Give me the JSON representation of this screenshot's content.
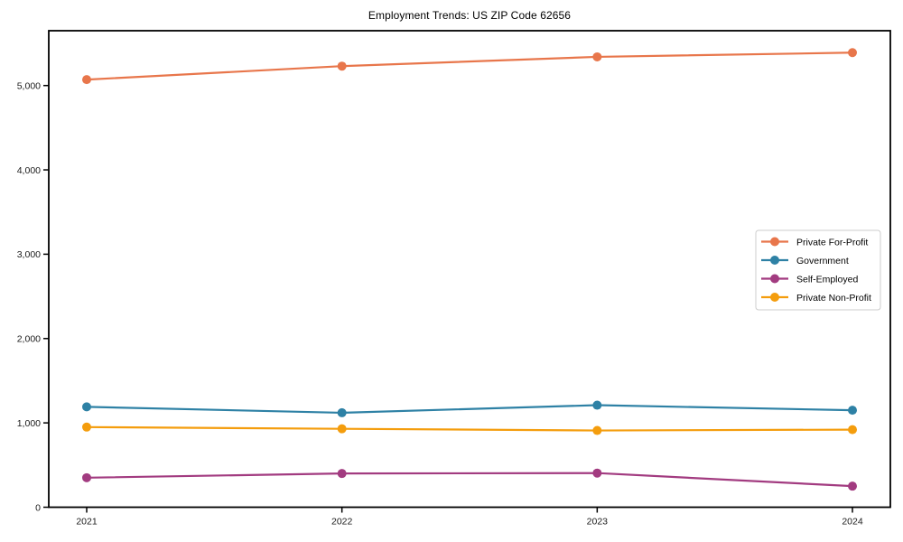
{
  "figure": {
    "background": "#ffffff",
    "axis_color": "#000000",
    "tick_label_color": "#1a1a1a",
    "legend_border_color": "#cccccc",
    "legend_background": "#ffffff"
  },
  "chart_data": {
    "type": "line",
    "title": "Employment Trends: US ZIP Code 62656",
    "categories": [
      "2021",
      "2022",
      "2023",
      "2024"
    ],
    "series": [
      {
        "name": "Private For-Profit",
        "color": "#e8764b",
        "values": [
          5070,
          5230,
          5340,
          5390
        ]
      },
      {
        "name": "Government",
        "color": "#2e81a5",
        "values": [
          1190,
          1120,
          1210,
          1150
        ]
      },
      {
        "name": "Self-Employed",
        "color": "#a23b80",
        "values": [
          350,
          400,
          405,
          250
        ]
      },
      {
        "name": "Private Non-Profit",
        "color": "#f49d0d",
        "values": [
          950,
          930,
          910,
          920
        ]
      }
    ],
    "xlabel": "",
    "ylabel": "",
    "ylim": [
      0,
      5650
    ],
    "yticks": [
      {
        "value": 0,
        "label": "0"
      },
      {
        "value": 1000,
        "label": "1,000"
      },
      {
        "value": 2000,
        "label": "2,000"
      },
      {
        "value": 3000,
        "label": "3,000"
      },
      {
        "value": 4000,
        "label": "4,000"
      },
      {
        "value": 5000,
        "label": "5,000"
      }
    ],
    "grid": false,
    "legend": {
      "position": "center-right"
    },
    "marker": "circle"
  }
}
